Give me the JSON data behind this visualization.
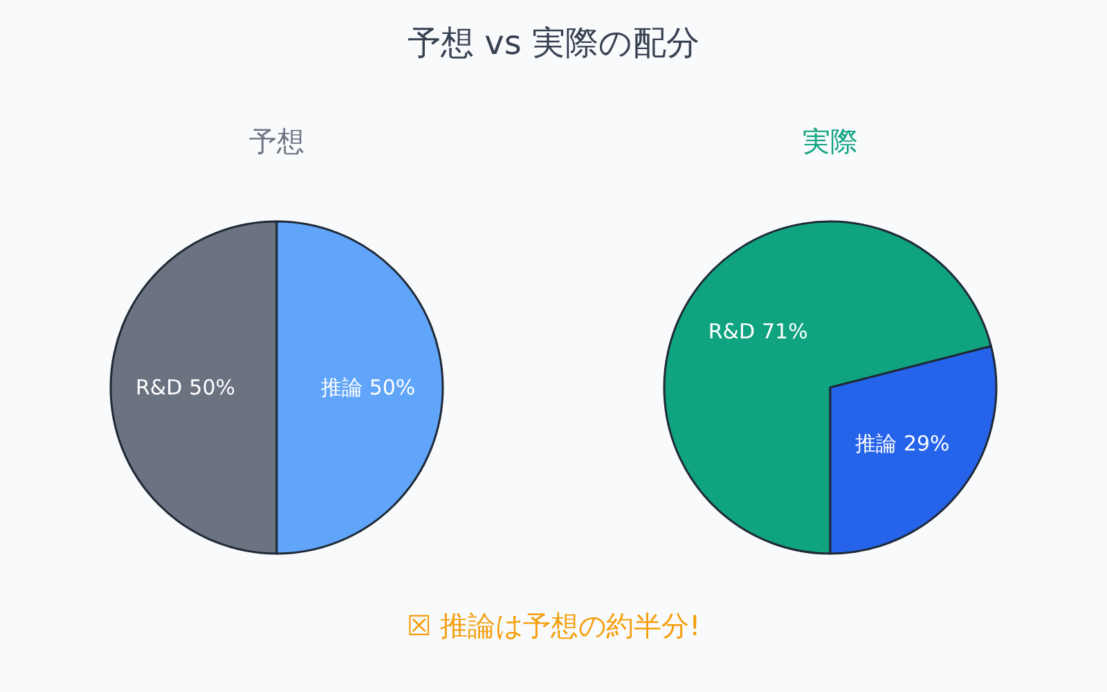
{
  "chart_data": [
    {
      "type": "other",
      "title": "予想 vs 実際の配分",
      "annotations": [
        "☒ 推論は予想の約半分!"
      ]
    },
    {
      "type": "pie",
      "title": "予想",
      "categories": [
        "R&D",
        "推論"
      ],
      "values": [
        50,
        50
      ],
      "colors": [
        "#6b7280",
        "#60a5fa"
      ],
      "value_labels": [
        "50%",
        "50%"
      ]
    },
    {
      "type": "pie",
      "title": "実際",
      "categories": [
        "R&D",
        "推論"
      ],
      "values": [
        71,
        29
      ],
      "colors": [
        "#10a37f",
        "#2563eb"
      ],
      "value_labels": [
        "71%",
        "29%"
      ]
    }
  ]
}
